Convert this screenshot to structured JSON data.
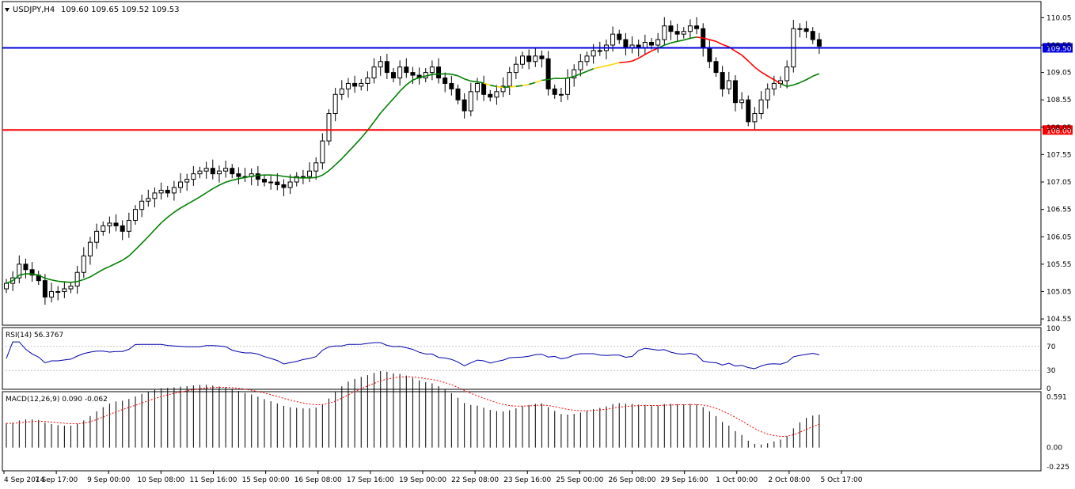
{
  "window": {
    "symbol": "USDJPY,H4",
    "ohlc": "109.60 109.65 109.52 109.53",
    "menu_icon": "triangle-down-icon"
  },
  "chart_data": [
    {
      "type": "candlestick",
      "title": "USDJPY,H4",
      "ylim": [
        104.45,
        110.33
      ],
      "y_ticks": [
        "110.05",
        "109.55",
        "109.05",
        "108.55",
        "108.05",
        "107.55",
        "107.05",
        "106.55",
        "106.05",
        "105.55",
        "105.05",
        "104.55"
      ],
      "x_ticks": [
        "4 Sep 2014",
        "7 Sep 17:00",
        "9 Sep 00:00",
        "10 Sep 08:00",
        "11 Sep 16:00",
        "15 Sep 00:00",
        "16 Sep 08:00",
        "17 Sep 16:00",
        "19 Sep 00:00",
        "22 Sep 08:00",
        "23 Sep 16:00",
        "25 Sep 00:00",
        "26 Sep 08:00",
        "29 Sep 16:00",
        "1 Oct 00:00",
        "2 Oct 08:00",
        "5 Oct 17:00"
      ],
      "levels": [
        {
          "label": "109.50",
          "value": 109.5,
          "color": "#0000dd"
        },
        {
          "label": "108.00",
          "value": 108.0,
          "color": "#ff0000"
        }
      ],
      "close": [
        105.2,
        105.3,
        105.55,
        105.45,
        105.35,
        105.25,
        104.95,
        105.05,
        105.05,
        105.1,
        105.15,
        105.4,
        105.7,
        105.95,
        106.15,
        106.25,
        106.3,
        106.25,
        106.15,
        106.35,
        106.55,
        106.7,
        106.75,
        106.85,
        106.9,
        106.85,
        106.95,
        107.05,
        107.1,
        107.2,
        107.25,
        107.3,
        107.2,
        107.25,
        107.3,
        107.2,
        107.15,
        107.15,
        107.2,
        107.1,
        107.05,
        107.05,
        107.0,
        106.95,
        107.05,
        107.15,
        107.15,
        107.25,
        107.4,
        107.8,
        108.3,
        108.65,
        108.75,
        108.85,
        108.8,
        108.85,
        108.95,
        109.15,
        109.25,
        109.05,
        108.95,
        109.15,
        109.05,
        109.0,
        108.95,
        109.05,
        109.15,
        108.95,
        108.85,
        108.75,
        108.55,
        108.35,
        108.7,
        108.85,
        108.65,
        108.6,
        108.7,
        108.8,
        109.05,
        109.2,
        109.35,
        109.25,
        109.35,
        109.3,
        108.75,
        108.65,
        108.65,
        108.95,
        109.1,
        109.25,
        109.35,
        109.45,
        109.45,
        109.55,
        109.75,
        109.65,
        109.5,
        109.55,
        109.5,
        109.6,
        109.55,
        109.65,
        109.9,
        109.8,
        109.75,
        109.8,
        109.9,
        109.85,
        109.5,
        109.25,
        109.05,
        108.75,
        108.9,
        108.5,
        108.55,
        108.15,
        108.3,
        108.55,
        108.75,
        108.85,
        108.9,
        109.15,
        109.85,
        109.85,
        109.8,
        109.65,
        109.53
      ],
      "series": [
        {
          "name": "MA",
          "color": "#008000"
        }
      ]
    },
    {
      "type": "line",
      "title": "RSI(14) 56.3767",
      "ylim": [
        0,
        100
      ],
      "y_ticks": [
        "100",
        "70",
        "30",
        "0"
      ],
      "levels": [
        70,
        30
      ],
      "series": [
        {
          "name": "RSI(14)",
          "color": "#0000aa"
        }
      ]
    },
    {
      "type": "bar",
      "title": "MACD(12,26,9) 0.090 -0.062",
      "ylim": [
        -0.26,
        0.63
      ],
      "y_ticks": [
        "0.591",
        "0.00",
        "-0.225"
      ],
      "series": [
        {
          "name": "MACD",
          "color": "#000000"
        },
        {
          "name": "Signal",
          "color": "#ff0000"
        }
      ]
    }
  ]
}
